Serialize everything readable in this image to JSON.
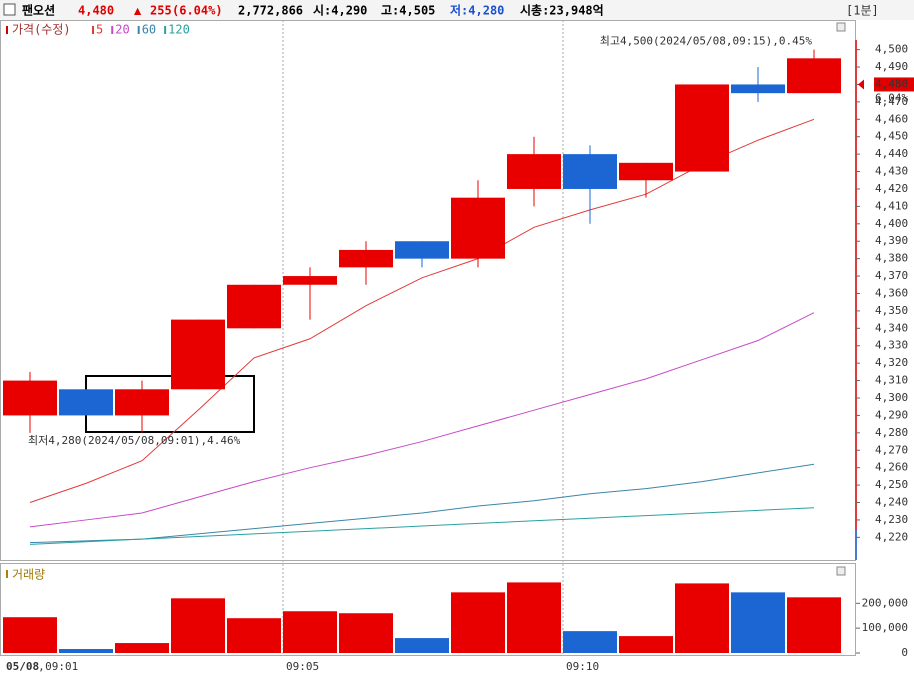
{
  "header": {
    "name": "팬오션",
    "price": "4,480",
    "arrow": "▲",
    "change": "255",
    "change_pct": "(6.04%)",
    "volume": "2,772,866",
    "open": "시:4,290",
    "high": "고:4,505",
    "low": "저:4,280",
    "mcap": "시총:23,948억",
    "interval": "[1분]"
  },
  "chart_data": [
    {
      "type": "candlestick",
      "legend_title": "가격(수정)",
      "date": "05/08",
      "categories": [
        "09:01",
        null,
        null,
        null,
        null,
        "09:05",
        null,
        null,
        null,
        null,
        "09:10",
        null,
        null,
        null,
        null
      ],
      "open": [
        4290,
        4305,
        4290,
        4305,
        4340,
        4365,
        4375,
        4390,
        4380,
        4420,
        4440,
        4425,
        4430,
        4480,
        4475
      ],
      "high": [
        4315,
        4305,
        4310,
        4345,
        4365,
        4375,
        4390,
        4390,
        4425,
        4450,
        4445,
        4435,
        4480,
        4490,
        4500
      ],
      "low": [
        4280,
        4290,
        4280,
        4305,
        4340,
        4345,
        4365,
        4375,
        4375,
        4410,
        4400,
        4415,
        4430,
        4470,
        4475
      ],
      "close": [
        4310,
        4290,
        4305,
        4345,
        4365,
        4370,
        4385,
        4380,
        4415,
        4440,
        4420,
        4435,
        4480,
        4475,
        4495
      ],
      "up_color": "#e80000",
      "down_color": "#1c66d4",
      "series": [
        {
          "name": "5",
          "color": "#e23a3a",
          "values": [
            4240,
            4251,
            4264,
            4293,
            4323,
            4334,
            4353,
            4369,
            4380,
            4398,
            4408,
            4417,
            4434,
            4448,
            4460
          ]
        },
        {
          "name": "20",
          "color": "#c64ac6",
          "values": [
            4226,
            4230,
            4234,
            4243,
            4252,
            4260,
            4267,
            4275,
            4284,
            4293,
            4302,
            4311,
            4322,
            4333,
            4349
          ]
        },
        {
          "name": "60",
          "color": "#3a86a8",
          "values": [
            4217,
            4218,
            4219,
            4222,
            4225,
            4228,
            4231,
            4234,
            4238,
            4241,
            4245,
            4248,
            4252,
            4257,
            4262
          ]
        },
        {
          "name": "120",
          "color": "#2aa0a0",
          "values": [
            4216,
            4217.5,
            4219,
            4220.5,
            4222,
            4223.5,
            4225,
            4226.5,
            4228,
            4229.5,
            4231,
            4232.5,
            4234,
            4235.5,
            4237
          ]
        }
      ],
      "ylim": [
        4207,
        4517
      ],
      "yticks": [
        {
          "value": 4220,
          "label": "4,220"
        },
        {
          "value": 4230,
          "label": "4,230"
        },
        {
          "value": 4240,
          "label": "4,240"
        },
        {
          "value": 4250,
          "label": "4,250"
        },
        {
          "value": 4260,
          "label": "4,260"
        },
        {
          "value": 4270,
          "label": "4,270"
        },
        {
          "value": 4280,
          "label": "4,280"
        },
        {
          "value": 4290,
          "label": "4,290"
        },
        {
          "value": 4300,
          "label": "4,300"
        },
        {
          "value": 4310,
          "label": "4,310"
        },
        {
          "value": 4320,
          "label": "4,320"
        },
        {
          "value": 4330,
          "label": "4,330"
        },
        {
          "value": 4340,
          "label": "4,340"
        },
        {
          "value": 4350,
          "label": "4,350"
        },
        {
          "value": 4360,
          "label": "4,360"
        },
        {
          "value": 4370,
          "label": "4,370"
        },
        {
          "value": 4380,
          "label": "4,380"
        },
        {
          "value": 4390,
          "label": "4,390"
        },
        {
          "value": 4400,
          "label": "4,400"
        },
        {
          "value": 4410,
          "label": "4,410"
        },
        {
          "value": 4420,
          "label": "4,420"
        },
        {
          "value": 4430,
          "label": "4,430"
        },
        {
          "value": 4440,
          "label": "4,440"
        },
        {
          "value": 4450,
          "label": "4,450"
        },
        {
          "value": 4460,
          "label": "4,460"
        },
        {
          "value": 4470,
          "label": "4,470"
        },
        {
          "value": 4480,
          "label": "4,480"
        },
        {
          "value": 4490,
          "label": "4,490"
        },
        {
          "value": 4500,
          "label": "4,500"
        }
      ],
      "annotations": {
        "high": "최고4,500(2024/05/08,09:15),0.45%",
        "low": "최저4,280(2024/05/08,09:01),4.46%"
      },
      "last_price": {
        "value": 4480,
        "label": "4,480",
        "pct": "6.04%"
      }
    },
    {
      "type": "bar",
      "title": "거래량",
      "values": [
        144000,
        16000,
        40000,
        220000,
        140000,
        168000,
        160000,
        60000,
        244000,
        284000,
        88000,
        68000,
        280000,
        244000,
        224000
      ],
      "ylim": [
        0,
        350000
      ],
      "yticks": [
        0,
        {
          "value": 100000,
          "label": "100,000"
        },
        {
          "value": 200000,
          "label": "200,000"
        }
      ]
    }
  ]
}
